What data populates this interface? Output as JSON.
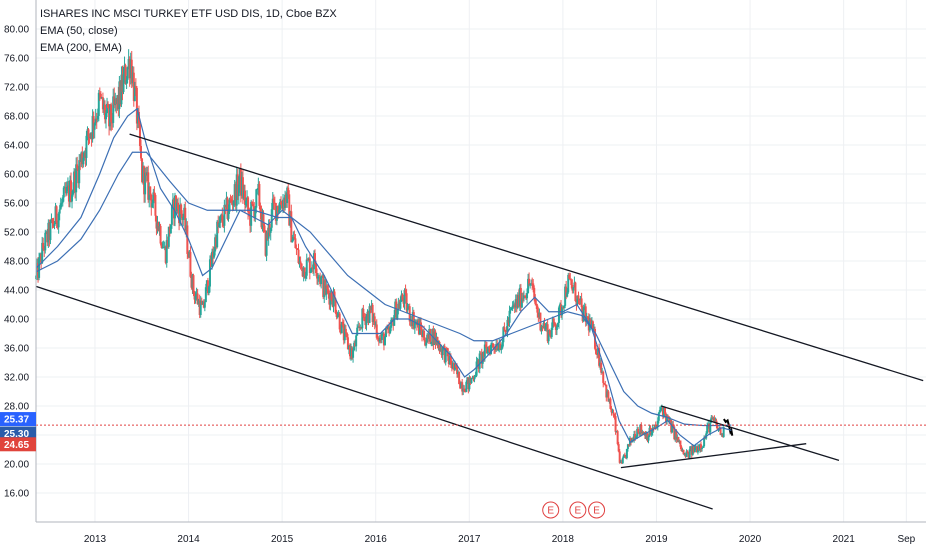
{
  "chart_data": {
    "type": "candlestick",
    "title": "ISHARES INC MSCI TURKEY ETF USD DIS, 1D, Cboe BZX",
    "indicators": [
      "EMA (50, close)",
      "EMA (200, EMA)"
    ],
    "ylim": [
      12,
      84
    ],
    "xlim": [
      2012.37,
      2021.88
    ],
    "y_ticks": [
      "16.00",
      "20.00",
      "24.00",
      "28.00",
      "32.00",
      "36.00",
      "40.00",
      "44.00",
      "48.00",
      "52.00",
      "56.00",
      "60.00",
      "64.00",
      "68.00",
      "72.00",
      "76.00",
      "80.00"
    ],
    "x_ticks": [
      {
        "label": "2013",
        "x": 2013.0
      },
      {
        "label": "2014",
        "x": 2014.0
      },
      {
        "label": "2015",
        "x": 2015.0
      },
      {
        "label": "2016",
        "x": 2016.0
      },
      {
        "label": "2017",
        "x": 2017.0
      },
      {
        "label": "2018",
        "x": 2018.0
      },
      {
        "label": "2019",
        "x": 2019.0
      },
      {
        "label": "2020",
        "x": 2020.0
      },
      {
        "label": "2021",
        "x": 2021.0
      },
      {
        "label": "Sep",
        "x": 2021.67
      }
    ],
    "price_path": [
      [
        2012.37,
        45.5
      ],
      [
        2012.45,
        50
      ],
      [
        2012.55,
        53
      ],
      [
        2012.65,
        56
      ],
      [
        2012.75,
        58
      ],
      [
        2012.85,
        62
      ],
      [
        2012.95,
        66
      ],
      [
        2013.05,
        70
      ],
      [
        2013.15,
        67
      ],
      [
        2013.25,
        70
      ],
      [
        2013.33,
        74
      ],
      [
        2013.38,
        76
      ],
      [
        2013.45,
        68
      ],
      [
        2013.5,
        60
      ],
      [
        2013.6,
        57
      ],
      [
        2013.7,
        52
      ],
      [
        2013.75,
        49
      ],
      [
        2013.85,
        56
      ],
      [
        2013.95,
        54
      ],
      [
        2014.05,
        44
      ],
      [
        2014.15,
        41
      ],
      [
        2014.22,
        46
      ],
      [
        2014.3,
        52
      ],
      [
        2014.45,
        56
      ],
      [
        2014.55,
        59
      ],
      [
        2014.65,
        54
      ],
      [
        2014.75,
        57
      ],
      [
        2014.82,
        50
      ],
      [
        2014.9,
        55
      ],
      [
        2015.05,
        57
      ],
      [
        2015.1,
        52
      ],
      [
        2015.2,
        47
      ],
      [
        2015.35,
        48
      ],
      [
        2015.45,
        44
      ],
      [
        2015.55,
        43
      ],
      [
        2015.65,
        38
      ],
      [
        2015.75,
        35
      ],
      [
        2015.85,
        40
      ],
      [
        2015.95,
        41
      ],
      [
        2016.05,
        37
      ],
      [
        2016.15,
        38
      ],
      [
        2016.2,
        41
      ],
      [
        2016.3,
        43
      ],
      [
        2016.35,
        41
      ],
      [
        2016.45,
        39
      ],
      [
        2016.55,
        37
      ],
      [
        2016.6,
        38
      ],
      [
        2016.7,
        36
      ],
      [
        2016.8,
        34
      ],
      [
        2016.92,
        31
      ],
      [
        2017.0,
        31
      ],
      [
        2017.1,
        34
      ],
      [
        2017.2,
        36
      ],
      [
        2017.35,
        37
      ],
      [
        2017.45,
        41
      ],
      [
        2017.55,
        43
      ],
      [
        2017.65,
        45
      ],
      [
        2017.75,
        40
      ],
      [
        2017.85,
        38
      ],
      [
        2017.95,
        40
      ],
      [
        2018.05,
        45
      ],
      [
        2018.12,
        44
      ],
      [
        2018.2,
        41
      ],
      [
        2018.3,
        39
      ],
      [
        2018.4,
        34
      ],
      [
        2018.48,
        29
      ],
      [
        2018.55,
        26
      ],
      [
        2018.62,
        19.5
      ],
      [
        2018.72,
        23
      ],
      [
        2018.8,
        25
      ],
      [
        2018.9,
        24
      ],
      [
        2019.0,
        25
      ],
      [
        2019.05,
        28
      ],
      [
        2019.12,
        26
      ],
      [
        2019.2,
        24
      ],
      [
        2019.3,
        21
      ],
      [
        2019.4,
        22
      ],
      [
        2019.5,
        23
      ],
      [
        2019.55,
        25
      ],
      [
        2019.6,
        26
      ],
      [
        2019.7,
        24
      ],
      [
        2019.76,
        25.5
      ],
      [
        2019.8,
        24
      ]
    ],
    "ema50_path": [
      [
        2012.37,
        47
      ],
      [
        2012.6,
        50
      ],
      [
        2012.85,
        54
      ],
      [
        2013.05,
        60
      ],
      [
        2013.2,
        65
      ],
      [
        2013.35,
        68
      ],
      [
        2013.45,
        69
      ],
      [
        2013.55,
        64
      ],
      [
        2013.7,
        58
      ],
      [
        2013.85,
        55
      ],
      [
        2014.0,
        51
      ],
      [
        2014.15,
        46
      ],
      [
        2014.25,
        47
      ],
      [
        2014.4,
        51
      ],
      [
        2014.55,
        55
      ],
      [
        2014.7,
        54
      ],
      [
        2014.85,
        53
      ],
      [
        2015.0,
        55
      ],
      [
        2015.1,
        54
      ],
      [
        2015.25,
        50
      ],
      [
        2015.45,
        46
      ],
      [
        2015.6,
        42
      ],
      [
        2015.75,
        38
      ],
      [
        2015.9,
        38
      ],
      [
        2016.05,
        38
      ],
      [
        2016.2,
        40
      ],
      [
        2016.35,
        40
      ],
      [
        2016.5,
        39
      ],
      [
        2016.65,
        37
      ],
      [
        2016.8,
        35
      ],
      [
        2016.95,
        32
      ],
      [
        2017.05,
        33
      ],
      [
        2017.2,
        35
      ],
      [
        2017.4,
        38
      ],
      [
        2017.55,
        41
      ],
      [
        2017.7,
        43
      ],
      [
        2017.85,
        41
      ],
      [
        2018.0,
        41
      ],
      [
        2018.15,
        42
      ],
      [
        2018.3,
        39
      ],
      [
        2018.45,
        33
      ],
      [
        2018.6,
        26
      ],
      [
        2018.72,
        23
      ],
      [
        2018.85,
        24
      ],
      [
        2019.0,
        25
      ],
      [
        2019.12,
        26
      ],
      [
        2019.25,
        24
      ],
      [
        2019.4,
        22.5
      ],
      [
        2019.55,
        24
      ],
      [
        2019.7,
        25
      ],
      [
        2019.8,
        24.65
      ]
    ],
    "ema200_path": [
      [
        2012.37,
        46.5
      ],
      [
        2012.6,
        48
      ],
      [
        2012.85,
        51
      ],
      [
        2013.05,
        55
      ],
      [
        2013.25,
        60
      ],
      [
        2013.4,
        63
      ],
      [
        2013.55,
        63
      ],
      [
        2013.8,
        59
      ],
      [
        2014.0,
        56
      ],
      [
        2014.2,
        55
      ],
      [
        2014.45,
        55
      ],
      [
        2014.7,
        55
      ],
      [
        2014.95,
        54
      ],
      [
        2015.1,
        54
      ],
      [
        2015.3,
        52
      ],
      [
        2015.5,
        49
      ],
      [
        2015.7,
        46
      ],
      [
        2015.9,
        44
      ],
      [
        2016.1,
        42
      ],
      [
        2016.3,
        41
      ],
      [
        2016.5,
        40
      ],
      [
        2016.7,
        39
      ],
      [
        2016.9,
        38
      ],
      [
        2017.05,
        37
      ],
      [
        2017.25,
        37
      ],
      [
        2017.45,
        38
      ],
      [
        2017.65,
        39
      ],
      [
        2017.85,
        40
      ],
      [
        2018.05,
        41
      ],
      [
        2018.2,
        40.5
      ],
      [
        2018.35,
        38
      ],
      [
        2018.5,
        34
      ],
      [
        2018.65,
        30
      ],
      [
        2018.8,
        28
      ],
      [
        2018.95,
        27
      ],
      [
        2019.1,
        26.5
      ],
      [
        2019.3,
        25.5
      ],
      [
        2019.5,
        25.3
      ],
      [
        2019.7,
        25.3
      ],
      [
        2019.8,
        25.37
      ]
    ],
    "trendlines": [
      [
        [
          2013.37,
          65.5
        ],
        [
          2021.85,
          31.5
        ]
      ],
      [
        [
          2012.37,
          44.5
        ],
        [
          2019.6,
          13.8
        ]
      ],
      [
        [
          2019.05,
          28
        ],
        [
          2020.95,
          20.5
        ]
      ],
      [
        [
          2018.62,
          19.5
        ],
        [
          2020.6,
          22.8
        ]
      ]
    ],
    "hline": 25.37,
    "price_labels": [
      {
        "text": "25.37",
        "value": 25.37,
        "color": "#2962ff"
      },
      {
        "text": "25.30",
        "value": 25.3,
        "color": "#2a5caa"
      },
      {
        "text": "24.65",
        "value": 24.65,
        "color": "#e0443c"
      }
    ],
    "event_markers": [
      {
        "text": "E",
        "x": 2017.87
      },
      {
        "text": "E",
        "x": 2018.16
      },
      {
        "text": "E",
        "x": 2018.36
      }
    ],
    "colors": {
      "up": "#26a69a",
      "down": "#ef5350",
      "ema": "#3c6fb4",
      "trend": "#131722",
      "hline": "#e04040"
    }
  }
}
